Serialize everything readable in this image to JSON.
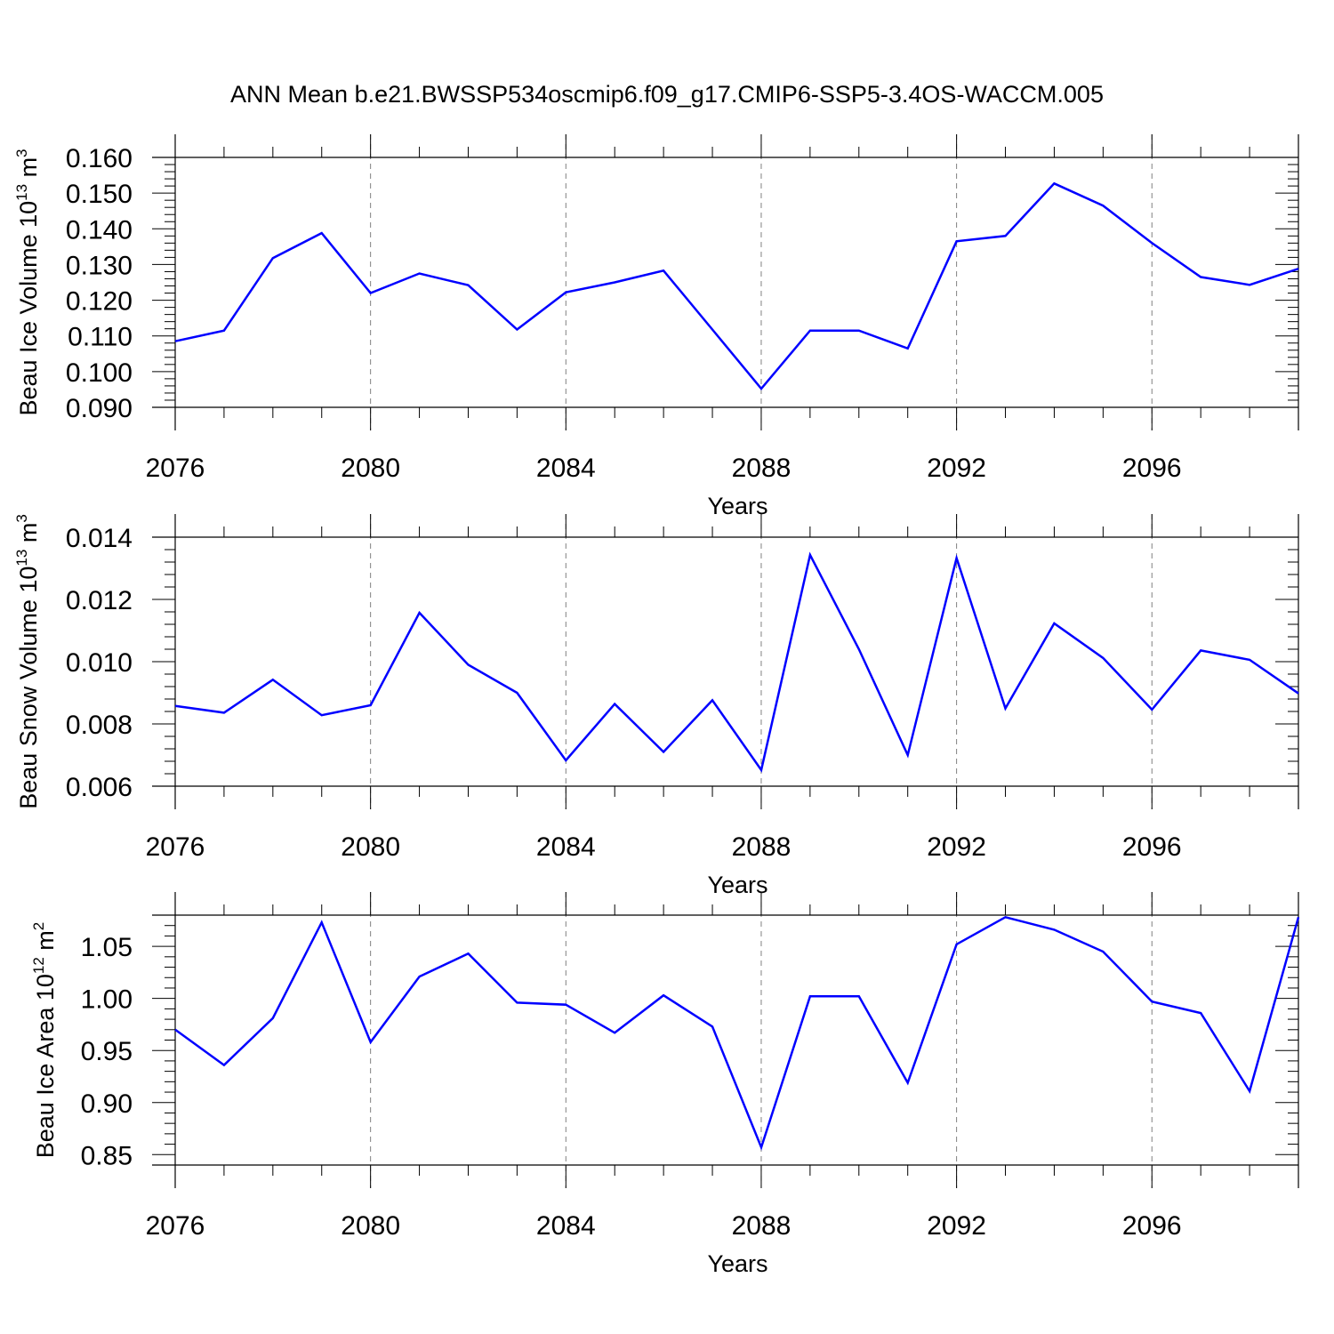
{
  "title": "ANN Mean b.e21.BWSSP534oscmip6.f09_g17.CMIP6-SSP5-3.4OS-WACCM.005",
  "colors": {
    "series": "#0000ff",
    "axis": "#000000",
    "grid": "#808080"
  },
  "chart_data": [
    {
      "type": "line",
      "ylabel": {
        "text": "Beau Ice Volume 10",
        "exponent": "13",
        "unit": "m",
        "unit_exponent": "3"
      },
      "xlabel": "Years",
      "xlim": [
        2076,
        2099
      ],
      "ylim": [
        0.09,
        0.16
      ],
      "xticks": [
        2076,
        2080,
        2084,
        2088,
        2092,
        2096
      ],
      "xtick_labels": [
        "2076",
        "2080",
        "2084",
        "2088",
        "2092",
        "2096"
      ],
      "yticks": [
        0.09,
        0.1,
        0.11,
        0.12,
        0.13,
        0.14,
        0.15,
        0.16
      ],
      "ytick_labels": [
        "0.090",
        "0.100",
        "0.110",
        "0.120",
        "0.130",
        "0.140",
        "0.150",
        "0.160"
      ],
      "grid_x": [
        2080,
        2084,
        2088,
        2092,
        2096
      ],
      "x": [
        2076,
        2077,
        2078,
        2079,
        2080,
        2081,
        2082,
        2083,
        2084,
        2085,
        2086,
        2087,
        2088,
        2089,
        2090,
        2091,
        2092,
        2093,
        2094,
        2095,
        2096,
        2097,
        2098,
        2099
      ],
      "y": [
        0.1085,
        0.1115,
        0.1318,
        0.1388,
        0.122,
        0.1275,
        0.1242,
        0.1118,
        0.1222,
        0.125,
        0.1283,
        0.1118,
        0.0952,
        0.1115,
        0.1115,
        0.1065,
        0.1365,
        0.138,
        0.1527,
        0.1465,
        0.136,
        0.1265,
        0.1243,
        0.1288
      ]
    },
    {
      "type": "line",
      "ylabel": {
        "text": "Beau Snow Volume 10",
        "exponent": "13",
        "unit": "m",
        "unit_exponent": "3"
      },
      "xlabel": "Years",
      "xlim": [
        2076,
        2099
      ],
      "ylim": [
        0.006,
        0.014
      ],
      "xticks": [
        2076,
        2080,
        2084,
        2088,
        2092,
        2096
      ],
      "xtick_labels": [
        "2076",
        "2080",
        "2084",
        "2088",
        "2092",
        "2096"
      ],
      "yticks": [
        0.006,
        0.008,
        0.01,
        0.012,
        0.014
      ],
      "ytick_labels": [
        "0.006",
        "0.008",
        "0.010",
        "0.012",
        "0.014"
      ],
      "grid_x": [
        2080,
        2084,
        2088,
        2092,
        2096
      ],
      "x": [
        2076,
        2077,
        2078,
        2079,
        2080,
        2081,
        2082,
        2083,
        2084,
        2085,
        2086,
        2087,
        2088,
        2089,
        2090,
        2091,
        2092,
        2093,
        2094,
        2095,
        2096,
        2097,
        2098,
        2099
      ],
      "y": [
        0.00858,
        0.00836,
        0.00942,
        0.00828,
        0.0086,
        0.01157,
        0.0099,
        0.009,
        0.00683,
        0.00864,
        0.0071,
        0.00876,
        0.00652,
        0.01343,
        0.0104,
        0.007,
        0.01333,
        0.0085,
        0.01123,
        0.01012,
        0.00846,
        0.01036,
        0.01006,
        0.00898
      ]
    },
    {
      "type": "line",
      "ylabel": {
        "text": "Beau Ice Area 10",
        "exponent": "12",
        "unit": "m",
        "unit_exponent": "2"
      },
      "xlabel": "Years",
      "xlim": [
        2076,
        2099
      ],
      "ylim": [
        0.84,
        1.08
      ],
      "xticks": [
        2076,
        2080,
        2084,
        2088,
        2092,
        2096
      ],
      "xtick_labels": [
        "2076",
        "2080",
        "2084",
        "2088",
        "2092",
        "2096"
      ],
      "yticks": [
        0.85,
        0.9,
        0.95,
        1.0,
        1.05
      ],
      "ytick_labels": [
        "0.85",
        "0.90",
        "0.95",
        "1.00",
        "1.05"
      ],
      "grid_x": [
        2080,
        2084,
        2088,
        2092,
        2096
      ],
      "x": [
        2076,
        2077,
        2078,
        2079,
        2080,
        2081,
        2082,
        2083,
        2084,
        2085,
        2086,
        2087,
        2088,
        2089,
        2090,
        2091,
        2092,
        2093,
        2094,
        2095,
        2096,
        2097,
        2098,
        2099
      ],
      "y": [
        0.97,
        0.936,
        0.981,
        1.073,
        0.958,
        1.021,
        1.043,
        0.996,
        0.994,
        0.967,
        1.003,
        0.973,
        0.857,
        1.002,
        1.002,
        0.919,
        1.052,
        1.078,
        1.066,
        1.045,
        0.997,
        0.986,
        0.911,
        1.078
      ]
    }
  ]
}
